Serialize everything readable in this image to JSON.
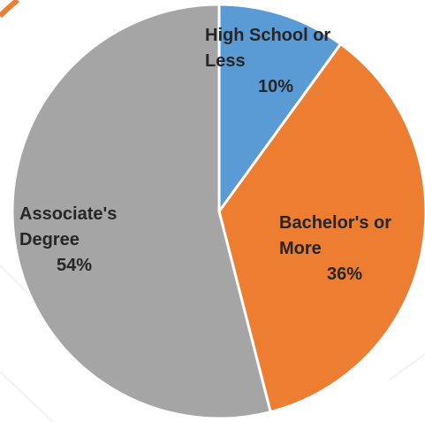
{
  "chart_data": {
    "type": "pie",
    "categories": [
      "High School or Less",
      "Bachelor's or More",
      "Associate's Degree"
    ],
    "values": [
      10,
      36,
      54
    ],
    "value_labels": [
      "10%",
      "36%",
      "54%"
    ],
    "colors": [
      "#5b9bd5",
      "#ed7d31",
      "#a5a5a5"
    ]
  }
}
